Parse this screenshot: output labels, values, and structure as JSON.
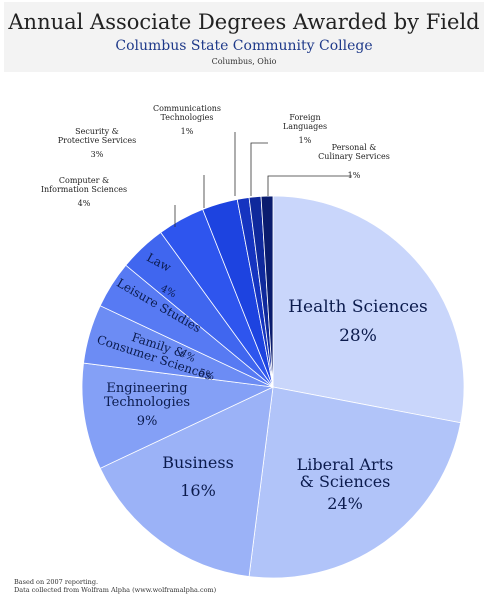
{
  "header": {
    "title": "Annual Associate Degrees Awarded by Field",
    "subtitle": "Columbus State Community College",
    "location": "Columbus, Ohio"
  },
  "footnote": {
    "line1": "Based on 2007 reporting.",
    "line2": "Data collected from Wolfram Alpha (www.wolframalpha.com)"
  },
  "chart_data": {
    "type": "pie",
    "title": "Annual Associate Degrees Awarded by Field",
    "slices": [
      {
        "lines": [
          "Health Sciences"
        ],
        "pct_label": "28%",
        "value": 28,
        "color": "#c9d6fb"
      },
      {
        "lines": [
          "Liberal Arts",
          "& Sciences"
        ],
        "pct_label": "24%",
        "value": 24,
        "color": "#b1c4f9"
      },
      {
        "lines": [
          "Business"
        ],
        "pct_label": "16%",
        "value": 16,
        "color": "#9bb2f7"
      },
      {
        "lines": [
          "Engineering",
          "Technologies"
        ],
        "pct_label": "9%",
        "value": 9,
        "color": "#84a0f6"
      },
      {
        "lines": [
          "Family &",
          "Consumer Sciences"
        ],
        "pct_label": "5%",
        "value": 5,
        "color": "#6c8cf4"
      },
      {
        "lines": [
          "Leisure Studies"
        ],
        "pct_label": "4%",
        "value": 4,
        "color": "#577af3"
      },
      {
        "lines": [
          "Law"
        ],
        "pct_label": "4%",
        "value": 4,
        "color": "#4066ef"
      },
      {
        "lines": [
          "Computer &",
          "Information Sciences"
        ],
        "pct_label": "4%",
        "value": 4,
        "color": "#2e55ee"
      },
      {
        "lines": [
          "Security &",
          "Protective Services"
        ],
        "pct_label": "3%",
        "value": 3,
        "color": "#1d43e0"
      },
      {
        "lines": [
          "Communications",
          "Technologies"
        ],
        "pct_label": "1%",
        "value": 1,
        "color": "#1534c0"
      },
      {
        "lines": [
          "Foreign",
          "Languages"
        ],
        "pct_label": "1%",
        "value": 1,
        "color": "#0f299c"
      },
      {
        "lines": [
          "Personal &",
          "Culinary Services"
        ],
        "pct_label": "1%",
        "value": 1,
        "color": "#0a1c6e"
      }
    ]
  }
}
